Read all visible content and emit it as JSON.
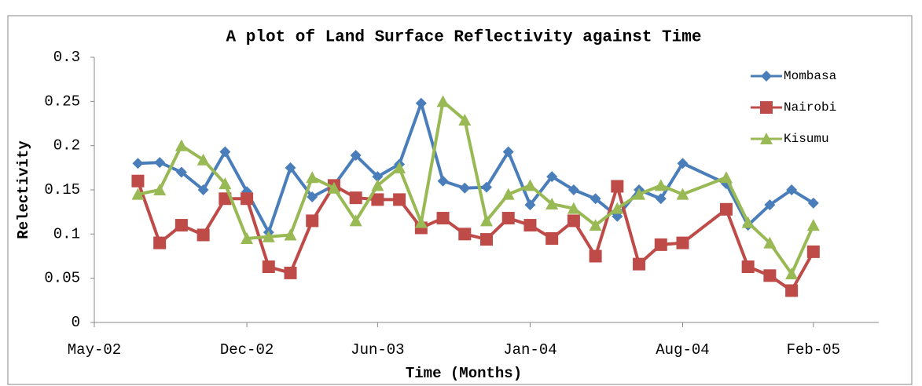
{
  "chart_data": {
    "type": "line",
    "title": "A plot of Land Surface Reflectivity against Time",
    "xlabel": "Time (Months)",
    "ylabel": "Relectivity",
    "x": [
      "2002-07",
      "2002-08",
      "2002-09",
      "2002-10",
      "2002-11",
      "2002-12",
      "2003-01",
      "2003-02",
      "2003-03",
      "2003-04",
      "2003-05",
      "2003-06",
      "2003-07",
      "2003-08",
      "2003-09",
      "2003-10",
      "2003-11",
      "2003-12",
      "2004-01",
      "2004-02",
      "2004-03",
      "2004-04",
      "2004-05",
      "2004-06",
      "2004-07",
      "2004-08",
      "2004-10",
      "2004-11",
      "2004-12",
      "2005-01",
      "2005-02"
    ],
    "series": [
      {
        "name": "Mombasa",
        "color": "#4a7ebb",
        "marker": "diamond",
        "values": [
          0.18,
          0.181,
          0.17,
          0.15,
          0.193,
          0.148,
          0.102,
          0.175,
          0.142,
          0.155,
          0.189,
          0.165,
          0.179,
          0.248,
          0.16,
          0.152,
          0.153,
          0.193,
          0.133,
          0.165,
          0.15,
          0.14,
          0.12,
          0.15,
          0.14,
          0.18,
          0.157,
          0.11,
          0.133,
          0.15,
          0.135
        ]
      },
      {
        "name": "Nairobi",
        "color": "#be4b48",
        "marker": "square",
        "values": [
          0.16,
          0.09,
          0.11,
          0.099,
          0.14,
          0.14,
          0.063,
          0.056,
          0.115,
          0.155,
          0.141,
          0.139,
          0.139,
          0.107,
          0.118,
          0.1,
          0.094,
          0.118,
          0.11,
          0.095,
          0.115,
          0.075,
          0.154,
          0.066,
          0.088,
          0.09,
          0.128,
          0.063,
          0.053,
          0.036,
          0.08
        ]
      },
      {
        "name": "Kisumu",
        "color": "#98b954",
        "marker": "triangle",
        "values": [
          0.145,
          0.15,
          0.2,
          0.184,
          0.157,
          0.095,
          0.097,
          0.099,
          0.164,
          0.152,
          0.115,
          0.155,
          0.175,
          0.113,
          0.25,
          0.229,
          0.115,
          0.145,
          0.155,
          0.134,
          0.129,
          0.11,
          0.129,
          0.145,
          0.155,
          0.145,
          0.164,
          0.113,
          0.09,
          0.055,
          0.11
        ]
      }
    ],
    "xlim": [
      "2002-05",
      "2005-05"
    ],
    "xticks": [
      {
        "value": "2002-05",
        "label": "May-02"
      },
      {
        "value": "2002-12",
        "label": "Dec-02"
      },
      {
        "value": "2003-06",
        "label": "Jun-03"
      },
      {
        "value": "2004-01",
        "label": "Jan-04"
      },
      {
        "value": "2004-08",
        "label": "Aug-04"
      },
      {
        "value": "2005-02",
        "label": "Feb-05"
      }
    ],
    "ylim": [
      0,
      0.3
    ],
    "yticks": [
      0,
      0.05,
      0.1,
      0.15,
      0.2,
      0.25,
      0.3
    ],
    "grid": false,
    "legend": "top-right"
  }
}
